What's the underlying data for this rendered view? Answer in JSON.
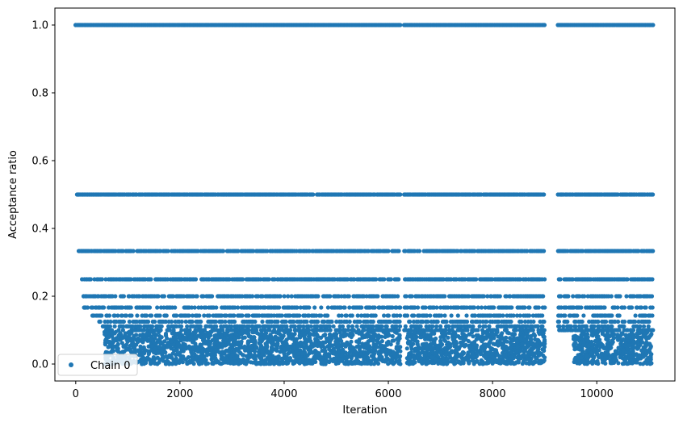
{
  "chart_data": {
    "type": "scatter",
    "title": "",
    "xlabel": "Iteration",
    "ylabel": "Acceptance ratio",
    "xlim": [
      -400,
      11500
    ],
    "ylim": [
      -0.05,
      1.05
    ],
    "xticks": [
      0,
      2000,
      4000,
      6000,
      8000,
      10000
    ],
    "yticks": [
      0.0,
      0.2,
      0.4,
      0.6,
      0.8,
      1.0
    ],
    "grid": false,
    "legend_position": "lower-left",
    "marker": "circle",
    "color": "#1f77b4",
    "series": [
      {
        "name": "Chain 0",
        "levels": [
          1.0,
          0.5,
          0.3333,
          0.25,
          0.2,
          0.1667,
          0.1429,
          0.125,
          0.1111,
          0.1
        ],
        "segments": [
          {
            "x_start": 0,
            "x_end": 6230
          },
          {
            "x_start": 6300,
            "x_end": 9000
          },
          {
            "x_start": 9250,
            "x_end": 11080
          }
        ],
        "sample_points": [
          {
            "x": 0,
            "y": 1.0
          },
          {
            "x": 50,
            "y": 0.5
          },
          {
            "x": 100,
            "y": 0.3333
          },
          {
            "x": 120,
            "y": 0.25
          },
          {
            "x": 150,
            "y": 0.2
          },
          {
            "x": 170,
            "y": 0.1667
          },
          {
            "x": 2000,
            "y": 0.05
          },
          {
            "x": 4000,
            "y": 0.03
          },
          {
            "x": 6000,
            "y": 0.04
          },
          {
            "x": 6230,
            "y": 0.0
          },
          {
            "x": 8000,
            "y": 0.02
          },
          {
            "x": 8500,
            "y": 0.01
          },
          {
            "x": 9000,
            "y": 0.06
          },
          {
            "x": 10500,
            "y": 0.03
          },
          {
            "x": 11080,
            "y": 1.0
          }
        ]
      }
    ]
  }
}
